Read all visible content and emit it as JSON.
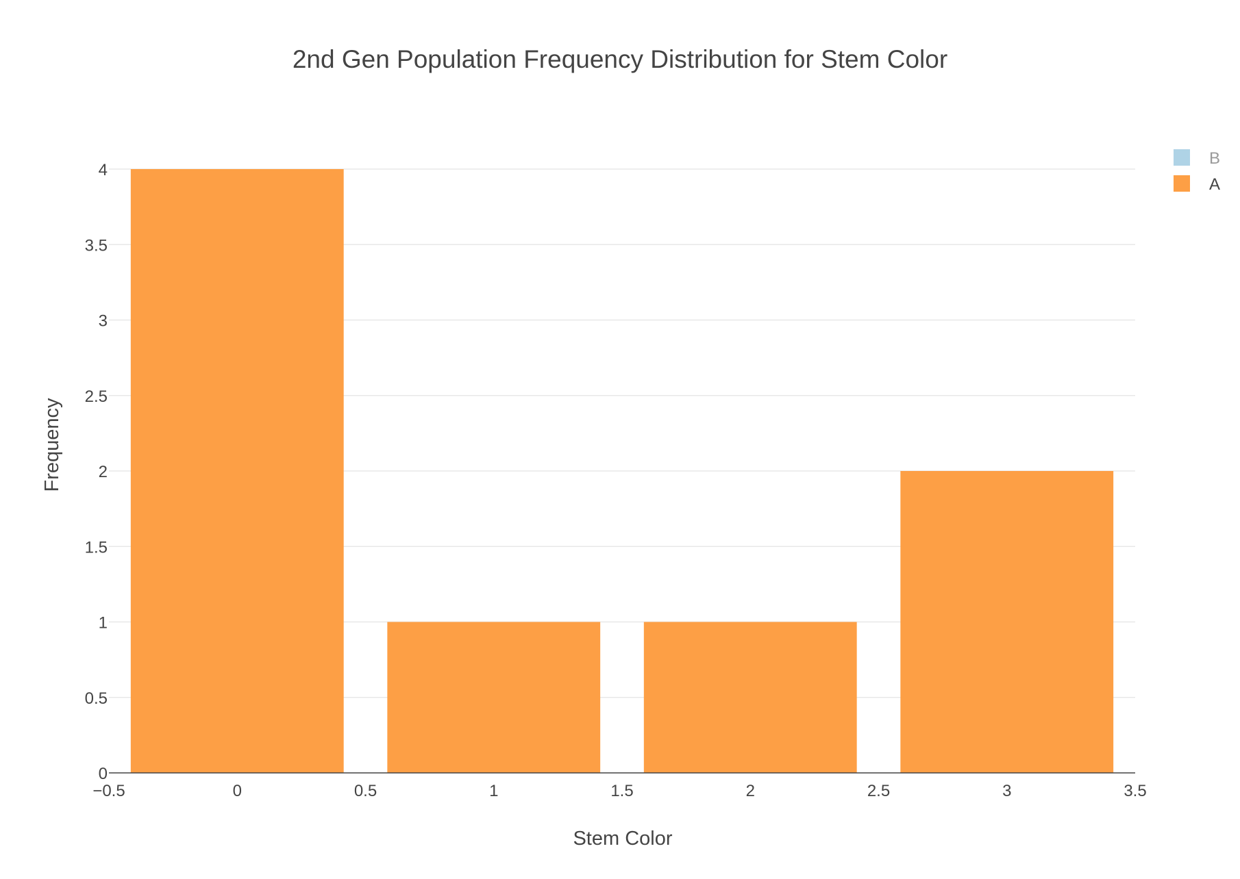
{
  "chart_data": {
    "type": "bar",
    "title": "2nd Gen Population Frequency Distribution for Stem Color",
    "xlabel": "Stem Color",
    "ylabel": "Frequency",
    "xlim": [
      -0.5,
      3.5
    ],
    "ylim": [
      0,
      4
    ],
    "x_ticks": [
      "−0.5",
      "0",
      "0.5",
      "1",
      "1.5",
      "2",
      "2.5",
      "3",
      "3.5"
    ],
    "y_ticks": [
      "0",
      "0.5",
      "1",
      "1.5",
      "2",
      "2.5",
      "3",
      "3.5",
      "4"
    ],
    "grid": true,
    "legend_position": "top-right",
    "series": [
      {
        "name": "B",
        "color": "#a6cee3",
        "hidden": true,
        "x": [],
        "values": []
      },
      {
        "name": "A",
        "color": "#fd9f45",
        "hidden": false,
        "x": [
          0,
          1,
          2,
          3
        ],
        "values": [
          4,
          1,
          1,
          2
        ]
      }
    ],
    "bar_width": 0.83
  }
}
